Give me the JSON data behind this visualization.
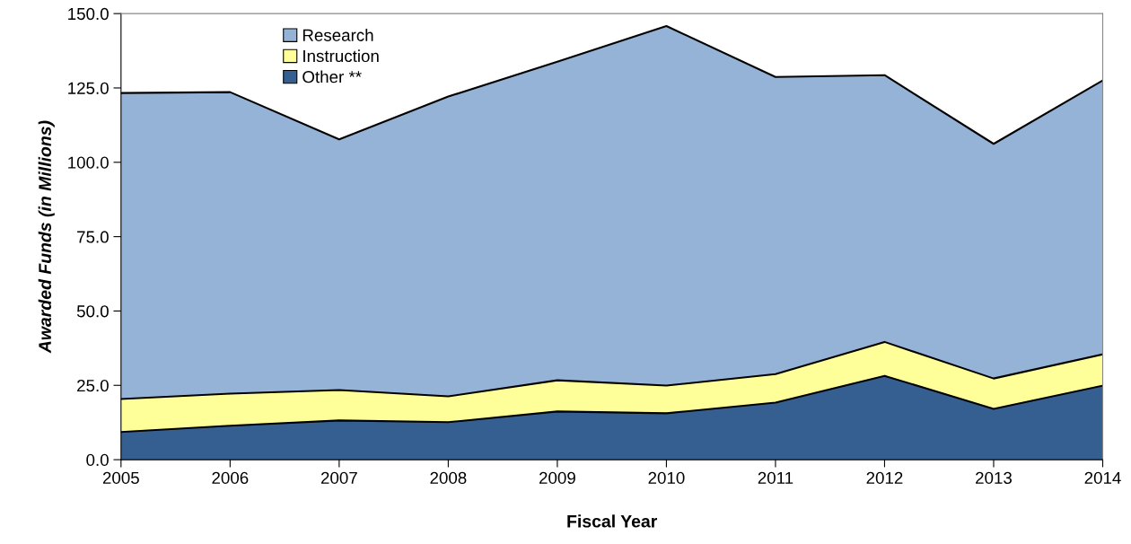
{
  "chart_data": {
    "type": "area",
    "stacked": true,
    "xlabel": "Fiscal Year",
    "ylabel": "Awarded Funds (in Millions)",
    "x": [
      2005,
      2006,
      2007,
      2008,
      2009,
      2010,
      2011,
      2012,
      2013,
      2014
    ],
    "series": [
      {
        "name": "Other **",
        "color": "#365f91",
        "values": [
          9.3,
          11.4,
          13.2,
          12.6,
          16.2,
          15.6,
          19.2,
          28.2,
          17.1,
          24.9
        ]
      },
      {
        "name": "Instruction",
        "color": "#ffff99",
        "values": [
          11.1,
          10.8,
          10.2,
          8.7,
          10.5,
          9.3,
          9.6,
          11.4,
          10.2,
          10.5
        ]
      },
      {
        "name": "Research",
        "color": "#95b3d7",
        "values": [
          102.9,
          101.4,
          84.3,
          100.8,
          107.1,
          120.9,
          99.9,
          89.7,
          78.9,
          92.1
        ]
      }
    ],
    "xlim": [
      2005,
      2014
    ],
    "xticks": [
      2005,
      2006,
      2007,
      2008,
      2009,
      2010,
      2011,
      2012,
      2013,
      2014
    ],
    "ylim": [
      0,
      150
    ],
    "yticks": [
      {
        "value": 0,
        "label": "0.0"
      },
      {
        "value": 25,
        "label": "25.0"
      },
      {
        "value": 50,
        "label": "50.0"
      },
      {
        "value": 75,
        "label": "75.0"
      },
      {
        "value": 100,
        "label": "100.0"
      },
      {
        "value": 125,
        "label": "125.0"
      },
      {
        "value": 150,
        "label": "150.0"
      }
    ],
    "grid": false,
    "legend": "top left"
  }
}
